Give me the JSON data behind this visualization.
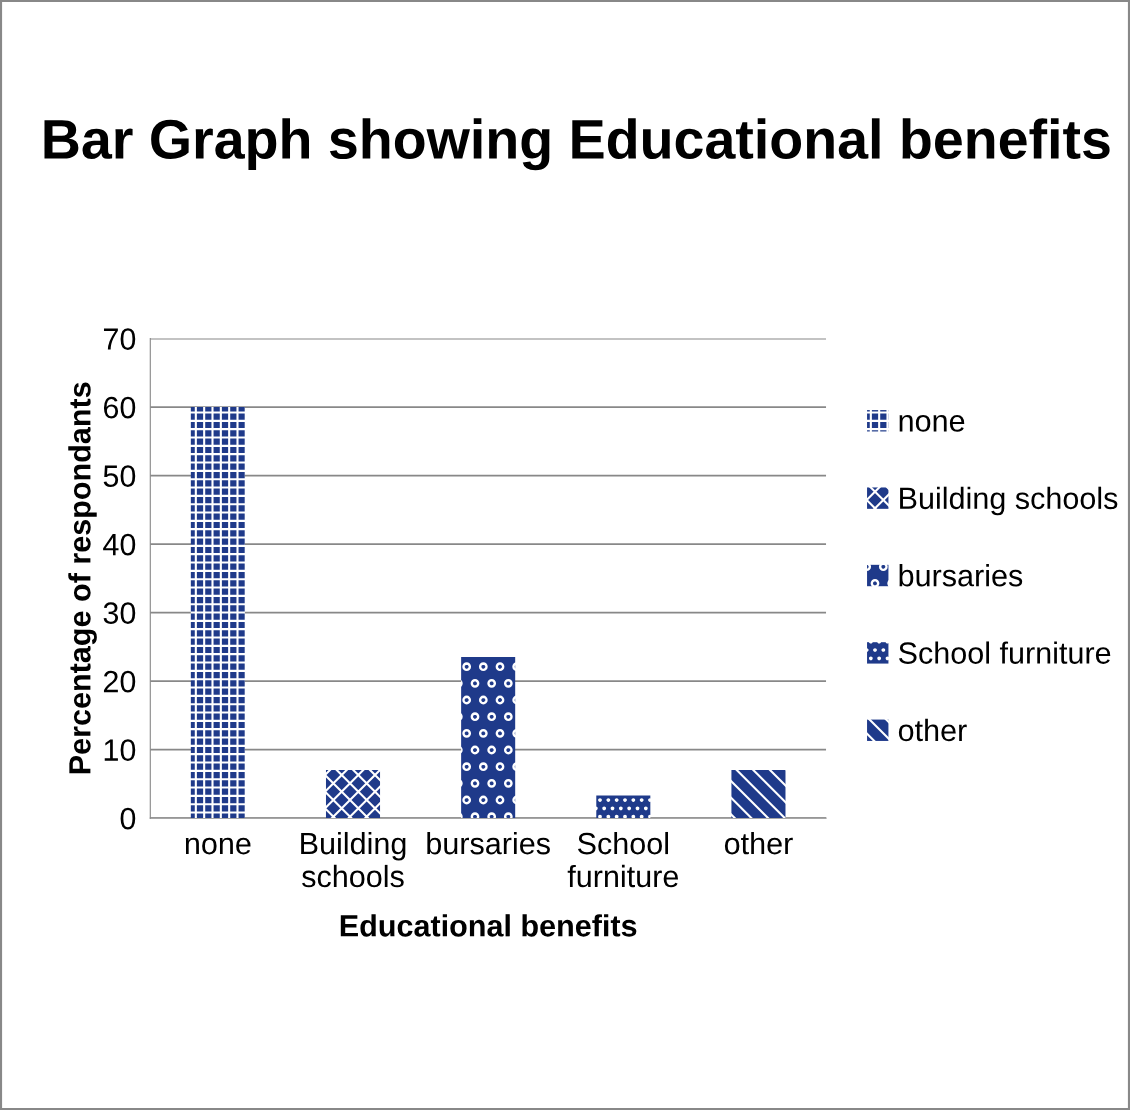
{
  "chart_data": {
    "type": "bar",
    "title": "Bar Graph showing Educational benefits",
    "xlabel": "Educational benefits",
    "ylabel": "Percentage of respondants",
    "categories": [
      "none",
      "Building schools",
      "bursaries",
      "School furniture",
      "other"
    ],
    "series": [
      {
        "name": "none",
        "color": "#1f3a8a",
        "values": [
          60,
          null,
          null,
          null,
          null
        ]
      },
      {
        "name": "Building schools",
        "color": "#1f3a8a",
        "values": [
          null,
          7,
          null,
          null,
          null
        ]
      },
      {
        "name": "bursaries",
        "color": "#1f3a8a",
        "values": [
          null,
          null,
          23.5,
          null,
          null
        ]
      },
      {
        "name": "School furniture",
        "color": "#1f3a8a",
        "values": [
          null,
          null,
          null,
          3.3,
          null
        ]
      },
      {
        "name": "other",
        "color": "#1f3a8a",
        "values": [
          null,
          null,
          null,
          null,
          7
        ]
      }
    ],
    "ylim": [
      0,
      70
    ],
    "yticks": [
      0,
      10,
      20,
      30,
      40,
      50,
      60,
      70
    ],
    "grid": "y",
    "legend": "right"
  }
}
